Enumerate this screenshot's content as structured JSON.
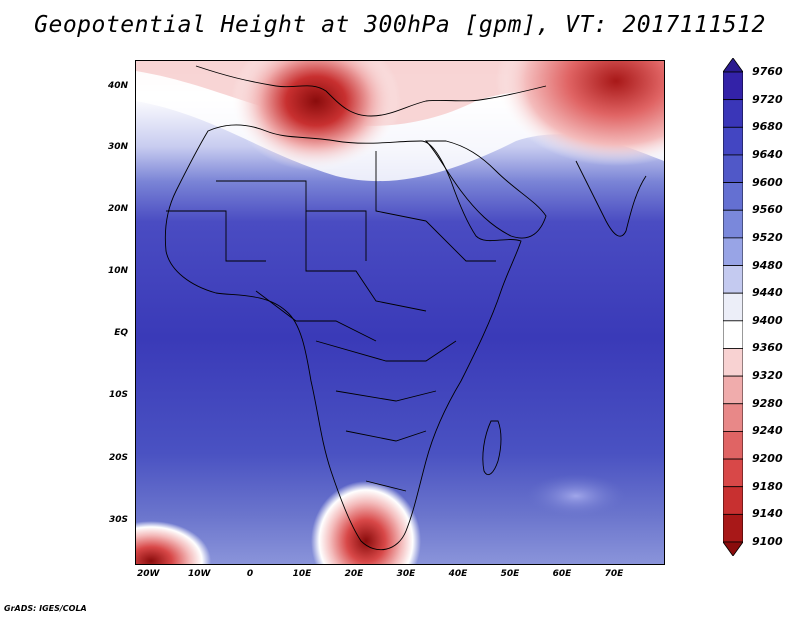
{
  "title": "Geopotential Height at 300hPa [gpm], VT: 2017111512",
  "credit": "GrADS: IGES/COLA",
  "lat_labels": [
    "40N",
    "30N",
    "20N",
    "10N",
    "EQ",
    "10S",
    "20S",
    "30S"
  ],
  "lon_labels": [
    "20W",
    "10W",
    "0",
    "10E",
    "20E",
    "30E",
    "40E",
    "50E",
    "60E",
    "70E"
  ],
  "colorbar": {
    "levels": [
      "9760",
      "9720",
      "9680",
      "9640",
      "9600",
      "9560",
      "9520",
      "9480",
      "9440",
      "9400",
      "9360",
      "9320",
      "9280",
      "9240",
      "9200",
      "9180",
      "9140",
      "9100"
    ],
    "colors": [
      "#2a1a8f",
      "#3322a8",
      "#3a36b8",
      "#4346c2",
      "#5058c8",
      "#6470d2",
      "#7a88db",
      "#98a4e6",
      "#c4caf0",
      "#eceef8",
      "#ffffff",
      "#f8d2d2",
      "#f0acac",
      "#e88888",
      "#e06464",
      "#d84848",
      "#c83030",
      "#a81818",
      "#8a0c0c"
    ]
  },
  "map_colors": {
    "deep": "#3634b8",
    "mid": "#4a4ec0",
    "light": "#6e78d0",
    "pale": "#a8b0e6",
    "white": "#ffffff",
    "pink": "#f4bcbc",
    "red": "#e06464",
    "darkred": "#a81818"
  }
}
